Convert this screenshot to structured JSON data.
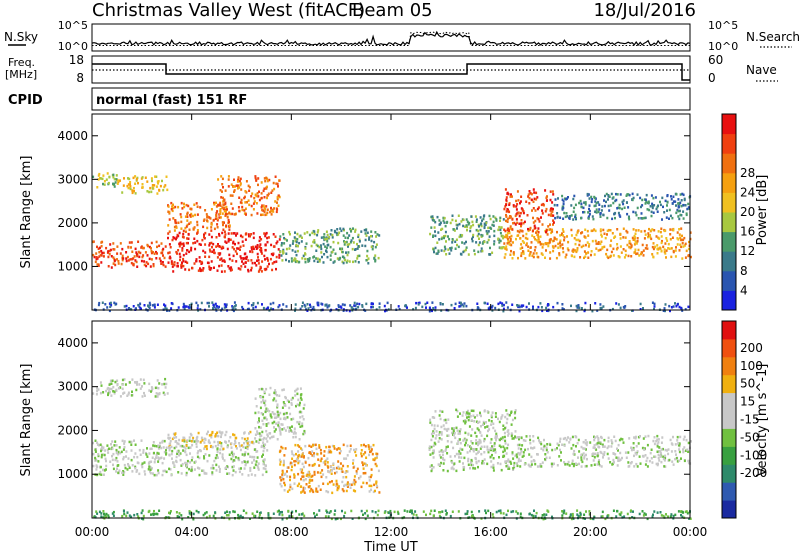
{
  "header": {
    "station": "Christmas Valley West (fitACF)",
    "beam": "Beam 05",
    "date": "18/Jul/2016"
  },
  "noise_panel": {
    "left_label": "N.Sky",
    "right_label": "N.Search",
    "left_ticks": [
      "10^5",
      "10^0"
    ],
    "right_ticks": [
      "10^5",
      "10^0"
    ]
  },
  "freq_panel": {
    "left_label_1": "Freq.",
    "left_label_2": "[MHz]",
    "left_ticks": [
      "18",
      "8"
    ],
    "right_label": "Nave",
    "right_ticks": [
      "60",
      "0"
    ]
  },
  "cpid": {
    "label": "CPID",
    "text": "normal (fast) 151 RF"
  },
  "colors": {
    "power_scale": [
      "#1a22e0",
      "#2a55b0",
      "#3a7a8a",
      "#4a9a6a",
      "#a8c840",
      "#f0c020",
      "#f5a010",
      "#f07010",
      "#f04010",
      "#e81010"
    ],
    "velocity_scale": [
      "#1a2aa0",
      "#2f5ab0",
      "#2e8a6a",
      "#38a040",
      "#70c040",
      "#c8c8c8",
      "#c8c8c8",
      "#f0b010",
      "#f08010",
      "#f05010",
      "#e01010"
    ]
  },
  "chart_data": [
    {
      "type": "heatmap",
      "name": "power",
      "ylabel": "Slant Range [km]",
      "yticks": [
        "1000",
        "2000",
        "3000",
        "4000"
      ],
      "ylim": [
        0,
        4500
      ],
      "xlim": [
        "00:00",
        "24:00"
      ],
      "colorbar": {
        "label": "Power [dB]",
        "ticks": [
          "4",
          "8",
          "12",
          "16",
          "20",
          "24",
          "28"
        ]
      },
      "regions": [
        {
          "t0": 0.0,
          "t1": 1.0,
          "r0": 2800,
          "r1": 3200,
          "level": 4
        },
        {
          "t0": 1.0,
          "t1": 3.0,
          "r0": 2700,
          "r1": 3100,
          "level": 5
        },
        {
          "t0": 3.0,
          "t1": 5.5,
          "r0": 1800,
          "r1": 2500,
          "level": 7
        },
        {
          "t0": 0.0,
          "t1": 3.0,
          "r0": 1000,
          "r1": 1600,
          "level": 8
        },
        {
          "t0": 3.0,
          "t1": 7.5,
          "r0": 900,
          "r1": 1800,
          "level": 9
        },
        {
          "t0": 5.0,
          "t1": 7.5,
          "r0": 2200,
          "r1": 3100,
          "level": 7
        },
        {
          "t0": 7.5,
          "t1": 11.5,
          "r0": 1100,
          "r1": 1900,
          "level": 3
        },
        {
          "t0": 13.5,
          "t1": 16.5,
          "r0": 1300,
          "r1": 2200,
          "level": 3
        },
        {
          "t0": 16.5,
          "t1": 24.0,
          "r0": 1200,
          "r1": 1900,
          "level": 6
        },
        {
          "t0": 16.5,
          "t1": 18.5,
          "r0": 1800,
          "r1": 2800,
          "level": 8
        },
        {
          "t0": 18.5,
          "t1": 24.0,
          "r0": 2100,
          "r1": 2700,
          "level": 2
        },
        {
          "t0": 0.0,
          "t1": 24.0,
          "r0": 0,
          "r1": 200,
          "level": 1
        }
      ]
    },
    {
      "type": "heatmap",
      "name": "velocity",
      "ylabel": "Slant Range [km]",
      "xlabel": "Time UT",
      "yticks": [
        "1000",
        "2000",
        "3000",
        "4000"
      ],
      "xticks": [
        "00:00",
        "04:00",
        "08:00",
        "12:00",
        "16:00",
        "20:00",
        "00:00"
      ],
      "ylim": [
        0,
        4500
      ],
      "xlim": [
        "00:00",
        "24:00"
      ],
      "colorbar": {
        "label": "Velocity [m s^-1]",
        "ticks": [
          "200",
          "100",
          "50",
          "15",
          "-15",
          "-50",
          "-100",
          "-200"
        ]
      },
      "regions": [
        {
          "t0": 0.0,
          "t1": 3.0,
          "r0": 2800,
          "r1": 3200,
          "level": 5
        },
        {
          "t0": 0.0,
          "t1": 7.0,
          "r0": 1000,
          "r1": 1800,
          "level": 5
        },
        {
          "t0": 3.0,
          "t1": 6.5,
          "r0": 1600,
          "r1": 2000,
          "level": 6
        },
        {
          "t0": 6.5,
          "t1": 8.5,
          "r0": 1800,
          "r1": 3000,
          "level": 5
        },
        {
          "t0": 7.5,
          "t1": 11.5,
          "r0": 600,
          "r1": 1700,
          "level": 7
        },
        {
          "t0": 13.5,
          "t1": 17.0,
          "r0": 1100,
          "r1": 2500,
          "level": 5
        },
        {
          "t0": 17.0,
          "t1": 24.0,
          "r0": 1200,
          "r1": 1900,
          "level": 5
        },
        {
          "t0": 0.0,
          "t1": 24.0,
          "r0": 0,
          "r1": 200,
          "level": 3
        }
      ]
    }
  ]
}
